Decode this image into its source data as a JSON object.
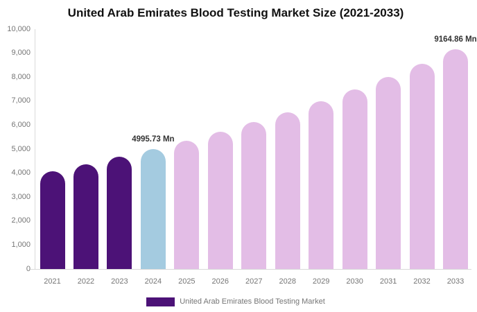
{
  "title": "United Arab Emirates Blood Testing Market Size (2021-2033)",
  "legend": {
    "label": "United Arab Emirates Blood Testing Market",
    "swatch_color": "#4C1277"
  },
  "colors": {
    "historical_bar": "#4C1277",
    "current_year_bar": "#A4CBE0",
    "forecast_bar": "#E3BDE6",
    "axis_line": "#D9D9D9",
    "tick_text": "#757575",
    "value_label_text": "#333333",
    "title_text": "#111111"
  },
  "value_labels": [
    {
      "year": "2024",
      "text": "4995.73 Mn"
    },
    {
      "year": "2033",
      "text": "9164.86 Mn"
    }
  ],
  "chart_data": {
    "type": "bar",
    "title": "United Arab Emirates Blood Testing Market Size (2021-2033)",
    "categories": [
      "2021",
      "2022",
      "2023",
      "2024",
      "2025",
      "2026",
      "2027",
      "2028",
      "2029",
      "2030",
      "2031",
      "2032",
      "2033"
    ],
    "values": [
      4082,
      4366,
      4670,
      4995.73,
      5344,
      5716,
      6115,
      6541,
      6997,
      7485,
      8007,
      8565,
      9164.86
    ],
    "bar_colors": [
      "#4C1277",
      "#4C1277",
      "#4C1277",
      "#A4CBE0",
      "#E3BDE6",
      "#E3BDE6",
      "#E3BDE6",
      "#E3BDE6",
      "#E3BDE6",
      "#E3BDE6",
      "#E3BDE6",
      "#E3BDE6",
      "#E3BDE6"
    ],
    "unit": "Mn",
    "xlabel": "",
    "ylabel": "",
    "ylim": [
      0,
      10000
    ],
    "ytick_step": 1000,
    "ytick_labels_top_to_bottom": [
      "10,000",
      "9,000",
      "8,000",
      "7,000",
      "6,000",
      "5,000",
      "4,000",
      "3,000",
      "2,000",
      "1,000",
      "0"
    ],
    "grid": false,
    "legend_entries": [
      "United Arab Emirates Blood Testing Market"
    ],
    "legend_position": "bottom"
  }
}
